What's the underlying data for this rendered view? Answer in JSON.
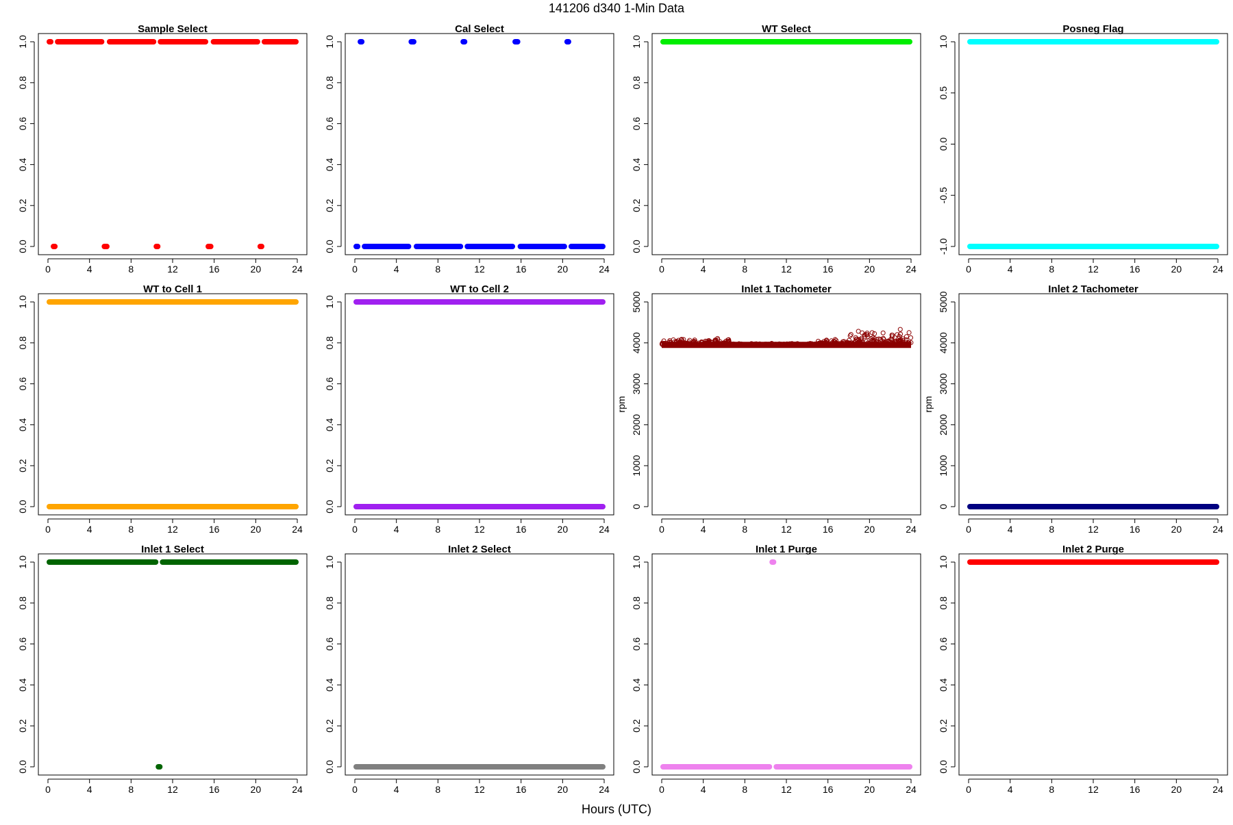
{
  "figure": {
    "title": "141206   d340   1-Min Data",
    "xlabel": "Hours (UTC)"
  },
  "chart_data": [
    {
      "type": "scatter",
      "title": "Sample Select",
      "ylabel": "",
      "color": "#ff0000",
      "marker": "filled",
      "xlim": [
        0,
        24
      ],
      "ylim": [
        0,
        1
      ],
      "x_ticks": [
        0,
        4,
        8,
        12,
        16,
        20,
        24
      ],
      "y_ticks": [
        "0.0",
        "0.2",
        "0.4",
        "0.6",
        "0.8",
        "1.0"
      ],
      "segments": [
        {
          "y": 1,
          "x": [
            0,
            0.4
          ]
        },
        {
          "y": 0,
          "x": [
            0.4,
            0.8
          ]
        },
        {
          "y": 1,
          "x": [
            0.8,
            5.3
          ]
        },
        {
          "y": 0,
          "x": [
            5.3,
            5.8
          ]
        },
        {
          "y": 1,
          "x": [
            5.8,
            10.3
          ]
        },
        {
          "y": 0,
          "x": [
            10.3,
            10.7
          ]
        },
        {
          "y": 1,
          "x": [
            10.7,
            15.3
          ]
        },
        {
          "y": 0,
          "x": [
            15.3,
            15.8
          ]
        },
        {
          "y": 1,
          "x": [
            15.8,
            20.3
          ]
        },
        {
          "y": 0,
          "x": [
            20.3,
            20.7
          ]
        },
        {
          "y": 1,
          "x": [
            20.7,
            24
          ]
        }
      ]
    },
    {
      "type": "scatter",
      "title": "Cal Select",
      "ylabel": "",
      "color": "#0000ff",
      "marker": "filled",
      "xlim": [
        0,
        24
      ],
      "ylim": [
        0,
        1
      ],
      "x_ticks": [
        0,
        4,
        8,
        12,
        16,
        20,
        24
      ],
      "y_ticks": [
        "0.0",
        "0.2",
        "0.4",
        "0.6",
        "0.8",
        "1.0"
      ],
      "segments": [
        {
          "y": 0,
          "x": [
            0,
            0.4
          ]
        },
        {
          "y": 1,
          "x": [
            0.4,
            0.8
          ]
        },
        {
          "y": 0,
          "x": [
            0.8,
            5.3
          ]
        },
        {
          "y": 1,
          "x": [
            5.3,
            5.8
          ]
        },
        {
          "y": 0,
          "x": [
            5.8,
            10.3
          ]
        },
        {
          "y": 1,
          "x": [
            10.3,
            10.7
          ]
        },
        {
          "y": 0,
          "x": [
            10.7,
            15.3
          ]
        },
        {
          "y": 1,
          "x": [
            15.3,
            15.8
          ]
        },
        {
          "y": 0,
          "x": [
            15.8,
            20.3
          ]
        },
        {
          "y": 1,
          "x": [
            20.3,
            20.7
          ]
        },
        {
          "y": 0,
          "x": [
            20.7,
            24
          ]
        }
      ]
    },
    {
      "type": "scatter",
      "title": "WT Select",
      "ylabel": "",
      "color": "#00ee00",
      "marker": "filled",
      "xlim": [
        0,
        24
      ],
      "ylim": [
        0,
        1
      ],
      "x_ticks": [
        0,
        4,
        8,
        12,
        16,
        20,
        24
      ],
      "y_ticks": [
        "0.0",
        "0.2",
        "0.4",
        "0.6",
        "0.8",
        "1.0"
      ],
      "segments": [
        {
          "y": 1,
          "x": [
            0,
            24
          ]
        }
      ]
    },
    {
      "type": "scatter",
      "title": "Posneg Flag",
      "ylabel": "",
      "color": "#00ffff",
      "marker": "filled",
      "xlim": [
        0,
        24
      ],
      "ylim": [
        -1,
        1
      ],
      "x_ticks": [
        0,
        4,
        8,
        12,
        16,
        20,
        24
      ],
      "y_ticks": [
        "-1.0",
        "-0.5",
        "0.0",
        "0.5",
        "1.0"
      ],
      "segments": [
        {
          "y": 1,
          "x": [
            0,
            24
          ]
        },
        {
          "y": -1,
          "x": [
            0,
            24
          ]
        }
      ]
    },
    {
      "type": "scatter",
      "title": "WT to Cell 1",
      "ylabel": "",
      "color": "#ffa500",
      "marker": "filled",
      "xlim": [
        0,
        24
      ],
      "ylim": [
        0,
        1
      ],
      "x_ticks": [
        0,
        4,
        8,
        12,
        16,
        20,
        24
      ],
      "y_ticks": [
        "0.0",
        "0.2",
        "0.4",
        "0.6",
        "0.8",
        "1.0"
      ],
      "segments": [
        {
          "y": 1,
          "x": [
            0,
            24
          ]
        },
        {
          "y": 0,
          "x": [
            0,
            24
          ]
        }
      ]
    },
    {
      "type": "scatter",
      "title": "WT to Cell 2",
      "ylabel": "",
      "color": "#a020f0",
      "marker": "filled",
      "xlim": [
        0,
        24
      ],
      "ylim": [
        0,
        1
      ],
      "x_ticks": [
        0,
        4,
        8,
        12,
        16,
        20,
        24
      ],
      "y_ticks": [
        "0.0",
        "0.2",
        "0.4",
        "0.6",
        "0.8",
        "1.0"
      ],
      "segments": [
        {
          "y": 1,
          "x": [
            0,
            24
          ]
        },
        {
          "y": 0,
          "x": [
            0,
            24
          ]
        }
      ]
    },
    {
      "type": "scatter",
      "title": "Inlet 1 Tachometer",
      "ylabel": "rpm",
      "color": "#8b0000",
      "marker": "open",
      "xlim": [
        0,
        24
      ],
      "ylim": [
        0,
        5000
      ],
      "x_ticks": [
        0,
        4,
        8,
        12,
        16,
        20,
        24
      ],
      "y_ticks": [
        "0",
        "1000",
        "2000",
        "3000",
        "4000",
        "5000"
      ],
      "segments": [],
      "series": {
        "base": 3950,
        "noise": [
          {
            "x": [
              0,
              6.5
            ],
            "amp": 200
          },
          {
            "x": [
              6.5,
              15
            ],
            "amp": 40
          },
          {
            "x": [
              15,
              18
            ],
            "amp": 160
          },
          {
            "x": [
              18,
              24
            ],
            "amp": 420
          }
        ]
      }
    },
    {
      "type": "scatter",
      "title": "Inlet 2 Tachometer",
      "ylabel": "rpm",
      "color": "#000080",
      "marker": "filled",
      "xlim": [
        0,
        24
      ],
      "ylim": [
        0,
        5000
      ],
      "x_ticks": [
        0,
        4,
        8,
        12,
        16,
        20,
        24
      ],
      "y_ticks": [
        "0",
        "1000",
        "2000",
        "3000",
        "4000",
        "5000"
      ],
      "segments": [
        {
          "y": 0,
          "x": [
            0,
            24
          ]
        }
      ]
    },
    {
      "type": "scatter",
      "title": "Inlet 1 Select",
      "ylabel": "",
      "color": "#006400",
      "marker": "filled",
      "xlim": [
        0,
        24
      ],
      "ylim": [
        0,
        1
      ],
      "x_ticks": [
        0,
        4,
        8,
        12,
        16,
        20,
        24
      ],
      "y_ticks": [
        "0.0",
        "0.2",
        "0.4",
        "0.6",
        "0.8",
        "1.0"
      ],
      "segments": [
        {
          "y": 1,
          "x": [
            0,
            10.5
          ]
        },
        {
          "y": 0,
          "x": [
            10.5,
            10.9
          ]
        },
        {
          "y": 1,
          "x": [
            10.9,
            24
          ]
        }
      ]
    },
    {
      "type": "scatter",
      "title": "Inlet 2 Select",
      "ylabel": "",
      "color": "#808080",
      "marker": "filled",
      "xlim": [
        0,
        24
      ],
      "ylim": [
        0,
        1
      ],
      "x_ticks": [
        0,
        4,
        8,
        12,
        16,
        20,
        24
      ],
      "y_ticks": [
        "0.0",
        "0.2",
        "0.4",
        "0.6",
        "0.8",
        "1.0"
      ],
      "segments": [
        {
          "y": 0,
          "x": [
            0,
            24
          ]
        }
      ]
    },
    {
      "type": "scatter",
      "title": "Inlet 1 Purge",
      "ylabel": "",
      "color": "#ee82ee",
      "marker": "filled",
      "xlim": [
        0,
        24
      ],
      "ylim": [
        0,
        1
      ],
      "x_ticks": [
        0,
        4,
        8,
        12,
        16,
        20,
        24
      ],
      "y_ticks": [
        "0.0",
        "0.2",
        "0.4",
        "0.6",
        "0.8",
        "1.0"
      ],
      "segments": [
        {
          "y": 0,
          "x": [
            0,
            10.5
          ]
        },
        {
          "y": 1,
          "x": [
            10.5,
            10.9
          ]
        },
        {
          "y": 0,
          "x": [
            10.9,
            24
          ]
        }
      ]
    },
    {
      "type": "scatter",
      "title": "Inlet 2 Purge",
      "ylabel": "",
      "color": "#ff0000",
      "marker": "filled",
      "xlim": [
        0,
        24
      ],
      "ylim": [
        0,
        1
      ],
      "x_ticks": [
        0,
        4,
        8,
        12,
        16,
        20,
        24
      ],
      "y_ticks": [
        "0.0",
        "0.2",
        "0.4",
        "0.6",
        "0.8",
        "1.0"
      ],
      "segments": [
        {
          "y": 1,
          "x": [
            0,
            24
          ]
        }
      ]
    }
  ]
}
